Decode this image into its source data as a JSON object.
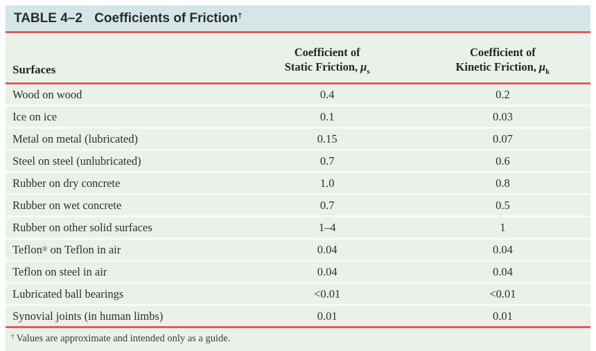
{
  "colors": {
    "title_bar_bg": "#d4e7e8",
    "body_bg": "#eaf1e9",
    "row_separator": "#f8faf5",
    "rule_red": "#dc5f5d",
    "text": "#2e2e2e"
  },
  "title": {
    "table_label": "TABLE 4–2",
    "title_text": "Coefficients of Friction",
    "dagger": "†"
  },
  "columns": {
    "surfaces": "Surfaces",
    "static": {
      "line1": "Coefficient of",
      "line2": "Static Friction,",
      "symbol": "μ",
      "sub": "s"
    },
    "kinetic": {
      "line1": "Coefficient of",
      "line2": "Kinetic Friction,",
      "symbol": "μ",
      "sub": "k"
    }
  },
  "rows": [
    {
      "surface": "Wood on wood",
      "static": "0.4",
      "kinetic": "0.2"
    },
    {
      "surface": "Ice on ice",
      "static": "0.1",
      "kinetic": "0.03"
    },
    {
      "surface": "Metal on metal (lubricated)",
      "static": "0.15",
      "kinetic": "0.07"
    },
    {
      "surface": "Steel on steel (unlubricated)",
      "static": "0.7",
      "kinetic": "0.6"
    },
    {
      "surface": "Rubber on dry concrete",
      "static": "1.0",
      "kinetic": "0.8"
    },
    {
      "surface": "Rubber on wet concrete",
      "static": "0.7",
      "kinetic": "0.5"
    },
    {
      "surface": "Rubber on other solid surfaces",
      "static": "1–4",
      "kinetic": "1"
    },
    {
      "surface_pre": "Teflon",
      "surface_sup": "®",
      "surface_post": " on Teflon in air",
      "static": "0.04",
      "kinetic": "0.04"
    },
    {
      "surface": "Teflon on steel in air",
      "static": "0.04",
      "kinetic": "0.04"
    },
    {
      "surface": "Lubricated ball bearings",
      "static": "<0.01",
      "kinetic": "<0.01"
    },
    {
      "surface": "Synovial joints (in human limbs)",
      "static": "0.01",
      "kinetic": "0.01"
    }
  ],
  "footnote": {
    "dagger": "†",
    "text": "Values are approximate and intended only as a guide."
  }
}
